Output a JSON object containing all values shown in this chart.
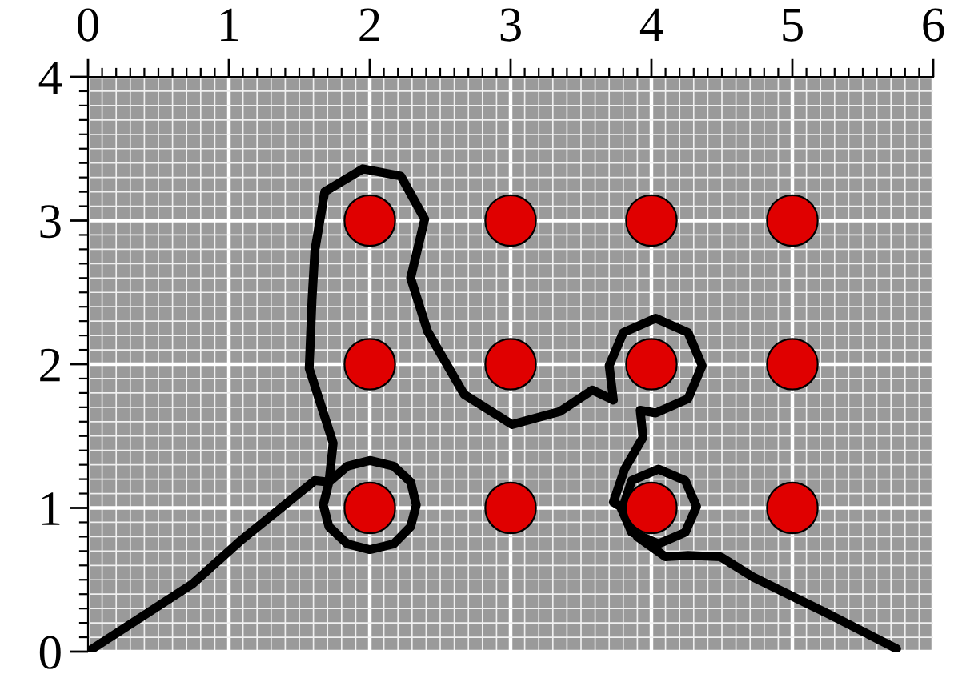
{
  "chart_data": {
    "type": "scatter",
    "xlim": [
      0,
      6
    ],
    "ylim": [
      0,
      4
    ],
    "xticks": [
      0,
      1,
      2,
      3,
      4,
      5,
      6
    ],
    "yticks": [
      0,
      1,
      2,
      3,
      4
    ],
    "grid": true,
    "series": [
      {
        "marker": "circle",
        "color": "#e00000",
        "x": [
          2,
          3,
          4,
          5,
          2,
          3,
          4,
          5,
          2,
          3,
          4,
          5
        ],
        "values": [
          1,
          1,
          1,
          1,
          2,
          2,
          2,
          2,
          3,
          3,
          3,
          3
        ]
      },
      {
        "type": "line",
        "marker": "none",
        "color": "#000000",
        "line_style": "solid",
        "x": [
          0,
          0.74,
          1.08,
          1.61,
          1.71,
          1.67,
          1.71,
          1.84,
          2.0,
          2.17,
          2.29,
          2.33,
          2.29,
          2.17,
          2.0,
          1.84,
          1.71,
          1.74,
          1.57,
          1.59,
          1.61,
          1.68,
          1.95,
          2.22,
          2.39,
          2.29,
          2.41,
          2.67,
          3.01,
          3.35,
          3.58,
          3.73,
          3.7,
          3.8,
          4.03,
          4.26,
          4.36,
          4.26,
          4.03,
          3.92,
          3.94,
          3.81,
          3.73,
          3.78,
          3.86,
          4.05,
          4.24,
          4.32,
          4.24,
          4.05,
          3.86,
          3.8,
          3.9,
          4.1,
          4.26,
          4.49,
          4.72,
          5.28,
          5.74
        ],
        "values": [
          0,
          0.47,
          0.77,
          1.19,
          1.18,
          1.02,
          0.87,
          0.75,
          0.71,
          0.75,
          0.87,
          1.02,
          1.18,
          1.29,
          1.33,
          1.29,
          1.18,
          1.45,
          1.97,
          2.45,
          2.79,
          3.2,
          3.36,
          3.31,
          3.01,
          2.6,
          2.23,
          1.79,
          1.58,
          1.67,
          1.82,
          1.75,
          1.99,
          2.22,
          2.32,
          2.22,
          1.99,
          1.76,
          1.66,
          1.68,
          1.49,
          1.27,
          1.04,
          1.01,
          0.83,
          0.75,
          0.83,
          1.01,
          1.19,
          1.27,
          1.19,
          1.01,
          0.8,
          0.66,
          0.67,
          0.66,
          0.52,
          0.25,
          0.02
        ]
      }
    ]
  }
}
